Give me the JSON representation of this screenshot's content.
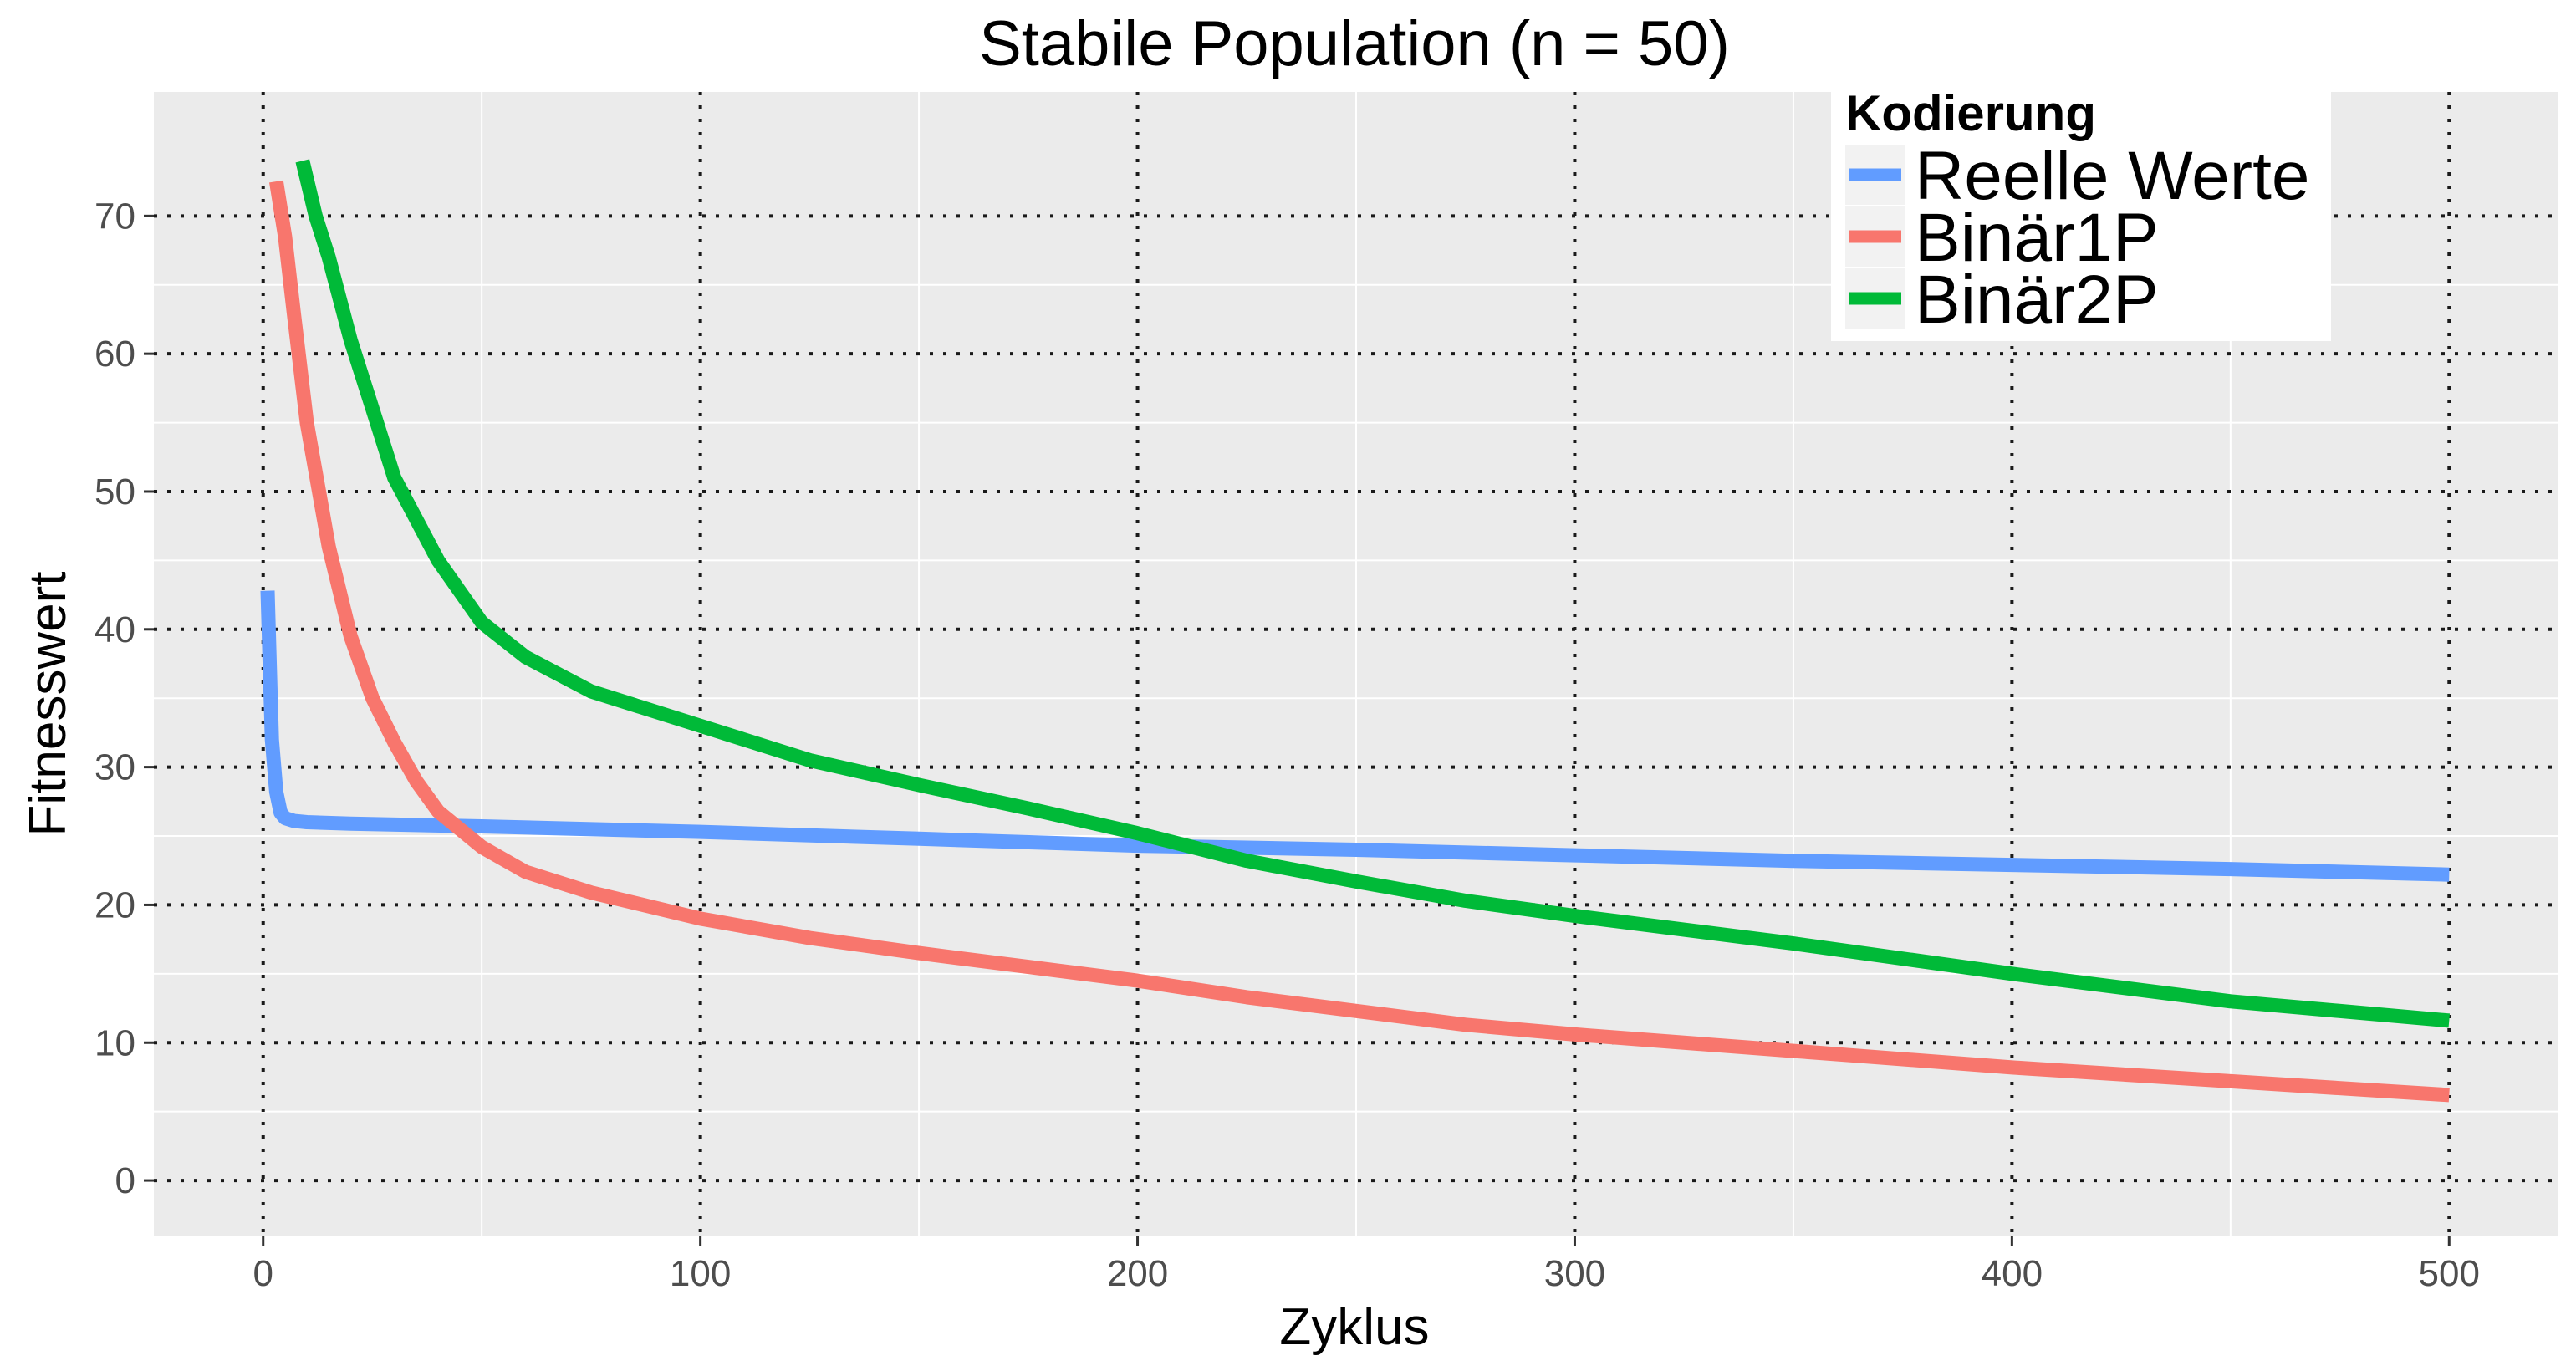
{
  "chart_data": {
    "type": "line",
    "title": "Stabile Population (n = 50)",
    "xlabel": "Zyklus",
    "ylabel": "Fitnesswert",
    "xlim": [
      -25,
      525
    ],
    "ylim": [
      -4,
      79
    ],
    "x_ticks": [
      0,
      100,
      200,
      300,
      400,
      500
    ],
    "y_ticks": [
      0,
      10,
      20,
      30,
      40,
      50,
      60,
      70
    ],
    "grid": true,
    "legend": {
      "title": "Kodierung",
      "placement": "top-right"
    },
    "series": [
      {
        "name": "Reelle Werte",
        "color": "#619CFF",
        "x": [
          1,
          2,
          3,
          4,
          5,
          7,
          10,
          20,
          50,
          100,
          150,
          200,
          250,
          300,
          350,
          400,
          450,
          500
        ],
        "y": [
          42.8,
          32,
          28.2,
          26.7,
          26.3,
          26.1,
          26.0,
          25.9,
          25.7,
          25.3,
          24.8,
          24.3,
          24.0,
          23.6,
          23.2,
          22.9,
          22.6,
          22.2
        ]
      },
      {
        "name": "Binär1P",
        "color": "#F8766D",
        "x": [
          3,
          5,
          7,
          10,
          15,
          20,
          25,
          30,
          35,
          40,
          50,
          60,
          75,
          100,
          125,
          150,
          175,
          200,
          225,
          250,
          275,
          300,
          350,
          400,
          450,
          500
        ],
        "y": [
          72.5,
          68.5,
          63,
          55,
          46,
          39.5,
          35,
          31.8,
          29,
          26.8,
          24.2,
          22.4,
          20.9,
          19.0,
          17.6,
          16.5,
          15.5,
          14.5,
          13.3,
          12.3,
          11.3,
          10.6,
          9.4,
          8.2,
          7.2,
          6.2
        ]
      },
      {
        "name": "Binär2P",
        "color": "#00BA38",
        "x": [
          9,
          12,
          15,
          20,
          25,
          30,
          40,
          50,
          60,
          75,
          100,
          125,
          150,
          175,
          200,
          225,
          250,
          275,
          300,
          350,
          400,
          450,
          500
        ],
        "y": [
          74,
          70,
          67,
          61,
          56,
          51,
          45,
          40.5,
          38,
          35.5,
          33,
          30.5,
          28.7,
          27,
          25.2,
          23.2,
          21.7,
          20.3,
          19.2,
          17.2,
          15,
          13,
          11.6
        ]
      }
    ]
  }
}
